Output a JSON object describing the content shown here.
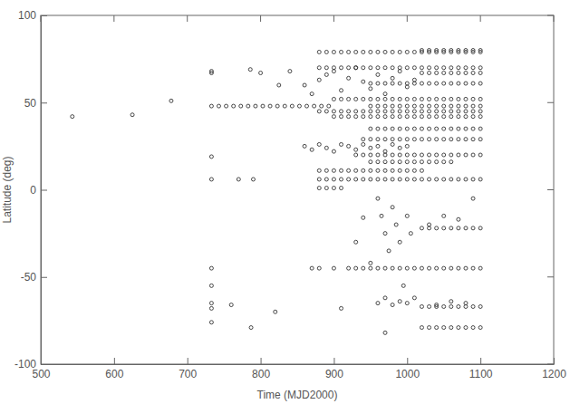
{
  "chart_data": {
    "type": "scatter",
    "x_label": "Time (MJD2000)",
    "y_label": "Latitude (deg)",
    "marker": "circle",
    "color": "#333333",
    "xlim": [
      500,
      1200
    ],
    "ylim": [
      -100,
      100
    ],
    "xticks": [
      500,
      600,
      700,
      800,
      900,
      1000,
      1100,
      1200
    ],
    "yticks": [
      -100,
      -50,
      0,
      50,
      100
    ],
    "x": [
      543,
      625,
      678,
      733,
      733,
      733,
      733,
      733,
      733,
      733,
      733,
      733,
      760,
      770,
      790,
      786,
      787,
      800,
      820,
      825,
      840,
      733,
      743,
      753,
      763,
      773,
      783,
      793,
      803,
      813,
      823,
      833,
      843,
      853,
      863,
      873,
      883,
      893,
      880,
      890,
      900,
      910,
      920,
      930,
      940,
      950,
      960,
      970,
      980,
      990,
      1000,
      1010,
      1020,
      1030,
      1040,
      1050,
      1060,
      1070,
      1080,
      1090,
      1100,
      1020,
      1030,
      1040,
      1050,
      1060,
      1070,
      1080,
      1090,
      1100,
      880,
      890,
      900,
      910,
      920,
      930,
      940,
      950,
      960,
      970,
      980,
      990,
      1000,
      1010,
      1020,
      1030,
      1040,
      1050,
      1060,
      1070,
      1080,
      1090,
      1100,
      1020,
      1030,
      1040,
      1050,
      1060,
      1070,
      1080,
      1090,
      1100,
      950,
      960,
      970,
      980,
      990,
      1000,
      1010,
      1020,
      1030,
      1040,
      1050,
      1060,
      1070,
      1080,
      1090,
      1100,
      900,
      910,
      920,
      930,
      940,
      950,
      960,
      970,
      980,
      990,
      1000,
      1010,
      1020,
      1030,
      1040,
      1050,
      1060,
      1070,
      1080,
      1090,
      1100,
      950,
      960,
      970,
      980,
      990,
      1000,
      1010,
      1020,
      1030,
      1040,
      1050,
      1060,
      1070,
      1080,
      1090,
      1100,
      880,
      890,
      900,
      910,
      920,
      930,
      940,
      950,
      960,
      970,
      980,
      990,
      1000,
      1010,
      1020,
      1030,
      1040,
      1050,
      1060,
      1070,
      1080,
      1090,
      1100,
      900,
      910,
      920,
      930,
      940,
      950,
      960,
      970,
      980,
      990,
      1000,
      1010,
      1020,
      1030,
      1040,
      1050,
      1060,
      1070,
      1080,
      1090,
      1100,
      950,
      960,
      970,
      980,
      990,
      1000,
      1010,
      1020,
      1030,
      1040,
      1050,
      1060,
      1070,
      1080,
      1090,
      1100,
      940,
      950,
      960,
      970,
      980,
      990,
      1000,
      1010,
      1020,
      1030,
      1040,
      1050,
      1060,
      1070,
      1080,
      1090,
      1100,
      930,
      940,
      950,
      960,
      970,
      980,
      990,
      1000,
      1010,
      1020,
      1030,
      1040,
      1050,
      1060,
      1070,
      1080,
      1090,
      1100,
      950,
      960,
      970,
      980,
      990,
      1000,
      1010,
      1020,
      1030,
      1040,
      1050,
      1060,
      880,
      890,
      900,
      910,
      920,
      930,
      940,
      950,
      960,
      970,
      980,
      990,
      1000,
      1010,
      1020,
      880,
      890,
      900,
      910,
      920,
      930,
      940,
      950,
      960,
      970,
      980,
      990,
      1000,
      1010,
      1020,
      1030,
      1040,
      1050,
      1060,
      1070,
      1080,
      1090,
      1100,
      880,
      890,
      900,
      910,
      1020,
      1030,
      1040,
      1050,
      1060,
      1070,
      1080,
      1090,
      1100,
      930,
      940,
      950,
      960,
      970,
      980,
      990,
      1000,
      1010,
      1020,
      1030,
      1040,
      1050,
      1060,
      1070,
      1080,
      1090,
      1100,
      1020,
      1030,
      1040,
      1050,
      1060,
      1070,
      1080,
      1090,
      1100,
      1020,
      1030,
      1040,
      1050,
      1060,
      1070,
      1080,
      1090,
      1100,
      860,
      870,
      880,
      890,
      900,
      910,
      920,
      930,
      940,
      950,
      960,
      970,
      980,
      990,
      1000,
      1010,
      860,
      870,
      880,
      890,
      900,
      910,
      920,
      930,
      940,
      950,
      960,
      970,
      980,
      990,
      1000,
      960,
      965,
      970,
      975,
      980,
      985,
      990,
      995,
      1000,
      1005,
      1010,
      1030,
      1050,
      1070,
      1090,
      940,
      960,
      970,
      980,
      990,
      1000,
      1040,
      1060,
      1080,
      970,
      910,
      870,
      880,
      900,
      920,
      950,
      930
    ],
    "values": [
      42,
      43,
      51,
      67,
      68,
      19,
      6,
      -45,
      -55,
      -65,
      -68,
      -76,
      -66,
      6,
      6,
      69,
      -79,
      67,
      -70,
      60,
      68,
      48,
      48,
      48,
      48,
      48,
      48,
      48,
      48,
      48,
      48,
      48,
      48,
      48,
      48,
      48,
      48,
      48,
      79,
      79,
      79,
      79,
      79,
      79,
      79,
      79,
      79,
      79,
      79,
      79,
      79,
      79,
      79,
      79,
      79,
      79,
      79,
      79,
      79,
      79,
      79,
      80,
      80,
      80,
      80,
      80,
      80,
      80,
      80,
      80,
      70,
      70,
      70,
      70,
      70,
      70,
      70,
      70,
      70,
      70,
      70,
      70,
      70,
      70,
      70,
      70,
      70,
      70,
      70,
      70,
      70,
      70,
      70,
      67,
      67,
      67,
      67,
      67,
      67,
      67,
      67,
      67,
      61,
      61,
      61,
      61,
      61,
      61,
      61,
      61,
      61,
      61,
      61,
      61,
      61,
      61,
      61,
      61,
      52,
      52,
      52,
      52,
      52,
      52,
      52,
      52,
      52,
      52,
      52,
      52,
      52,
      52,
      52,
      52,
      52,
      52,
      52,
      52,
      52,
      48,
      48,
      48,
      48,
      48,
      48,
      48,
      48,
      48,
      48,
      48,
      48,
      48,
      48,
      48,
      48,
      45,
      45,
      45,
      45,
      45,
      45,
      45,
      45,
      45,
      45,
      45,
      45,
      45,
      45,
      45,
      45,
      45,
      45,
      45,
      45,
      45,
      45,
      45,
      42,
      42,
      42,
      42,
      42,
      42,
      42,
      42,
      42,
      42,
      42,
      42,
      42,
      42,
      42,
      42,
      42,
      42,
      42,
      42,
      42,
      35,
      35,
      35,
      35,
      35,
      35,
      35,
      35,
      35,
      35,
      35,
      35,
      35,
      35,
      35,
      35,
      29,
      29,
      29,
      29,
      29,
      29,
      29,
      29,
      29,
      29,
      29,
      29,
      29,
      29,
      29,
      29,
      29,
      20,
      20,
      20,
      20,
      20,
      20,
      20,
      20,
      20,
      20,
      20,
      20,
      20,
      20,
      20,
      20,
      20,
      20,
      16,
      16,
      16,
      16,
      16,
      16,
      16,
      16,
      16,
      16,
      16,
      16,
      11,
      11,
      11,
      11,
      11,
      11,
      11,
      11,
      11,
      11,
      11,
      11,
      11,
      11,
      11,
      6,
      6,
      6,
      6,
      6,
      6,
      6,
      6,
      6,
      6,
      6,
      6,
      6,
      6,
      6,
      6,
      6,
      6,
      6,
      6,
      6,
      6,
      6,
      1,
      1,
      1,
      1,
      -22,
      -22,
      -22,
      -22,
      -22,
      -22,
      -22,
      -22,
      -22,
      -45,
      -45,
      -45,
      -45,
      -45,
      -45,
      -45,
      -45,
      -45,
      -45,
      -45,
      -45,
      -45,
      -45,
      -45,
      -45,
      -45,
      -45,
      -67,
      -67,
      -67,
      -67,
      -67,
      -67,
      -67,
      -67,
      -67,
      -79,
      -79,
      -79,
      -79,
      -79,
      -79,
      -79,
      -79,
      -79,
      60,
      55,
      63,
      66,
      68,
      57,
      64,
      70,
      62,
      58,
      66,
      55,
      64,
      68,
      59,
      63,
      25,
      23,
      26,
      24,
      22,
      26,
      25,
      23,
      26,
      24,
      25,
      22,
      26,
      24,
      25,
      -5,
      -15,
      -25,
      -35,
      -10,
      -20,
      -30,
      -55,
      -15,
      -25,
      -62,
      -20,
      -15,
      -17,
      -5,
      -16,
      -65,
      -62,
      -66,
      -64,
      -65,
      -66,
      -64,
      -65,
      -82,
      -68,
      -45,
      -45,
      -45,
      -45,
      -42,
      -30
    ]
  }
}
